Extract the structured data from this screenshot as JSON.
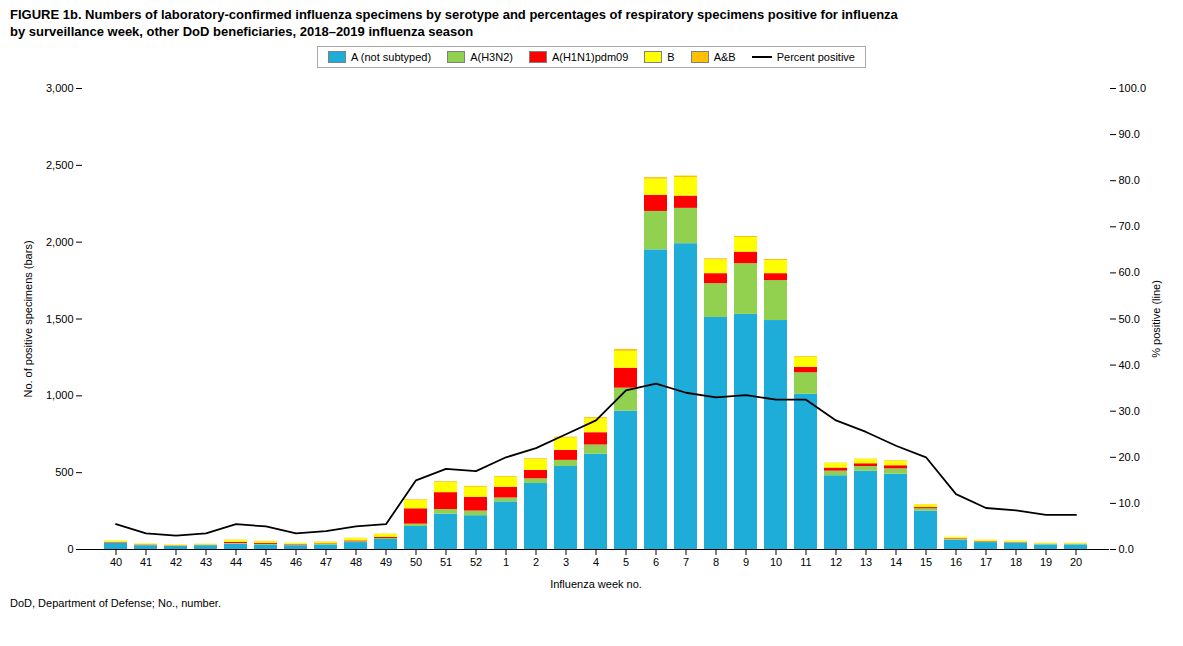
{
  "chart_data": {
    "type": "bar",
    "title": "FIGURE 1b.  Numbers of laboratory-confirmed influenza specimens by serotype and percentages of respiratory specimens positive for influenza",
    "subtitle": "by surveillance week, other DoD beneficiaries, 2018–2019 influenza season",
    "xlabel": "Influenza week no.",
    "ylabel": "No. of positive specimens (bars)",
    "y2label": "% positive (line)",
    "footnote": "DoD, Department of Defense; No., number.",
    "categories": [
      40,
      41,
      42,
      43,
      44,
      45,
      46,
      47,
      48,
      49,
      50,
      51,
      52,
      1,
      2,
      3,
      4,
      5,
      6,
      7,
      8,
      9,
      10,
      11,
      12,
      13,
      14,
      15,
      16,
      17,
      18,
      19,
      20
    ],
    "stacked": true,
    "legend": "top",
    "grid": false,
    "ylim": [
      0,
      3000
    ],
    "yticks": [
      0,
      500,
      {
        "value": 1000,
        "label": "1,000"
      },
      {
        "value": 1500,
        "label": "1,500"
      },
      {
        "value": 2000,
        "label": "2,000"
      },
      {
        "value": 2500,
        "label": "2,500"
      },
      {
        "value": 3000,
        "label": "3,000"
      }
    ],
    "y2lim": [
      0,
      100
    ],
    "y2ticks": [
      {
        "value": 0,
        "label": "0.0"
      },
      {
        "value": 10,
        "label": "10.0"
      },
      {
        "value": 20,
        "label": "20.0"
      },
      {
        "value": 30,
        "label": "30.0"
      },
      {
        "value": 40,
        "label": "40.0"
      },
      {
        "value": 50,
        "label": "50.0"
      },
      {
        "value": 60,
        "label": "60.0"
      },
      {
        "value": 70,
        "label": "70.0"
      },
      {
        "value": 80,
        "label": "80.0"
      },
      {
        "value": 90,
        "label": "90.0"
      },
      {
        "value": 100,
        "label": "100.0"
      }
    ],
    "series": [
      {
        "name": "A (not subtyped)",
        "type": "bar",
        "color": "#1EACD9",
        "values": [
          40,
          25,
          20,
          25,
          35,
          30,
          25,
          30,
          45,
          65,
          150,
          230,
          220,
          310,
          430,
          540,
          620,
          900,
          1950,
          1990,
          1510,
          1530,
          1490,
          1010,
          480,
          510,
          490,
          250,
          60,
          45,
          40,
          30,
          30
        ]
      },
      {
        "name": "A(H3N2)",
        "type": "bar",
        "color": "#92D050",
        "values": [
          3,
          2,
          2,
          2,
          4,
          3,
          2,
          3,
          5,
          6,
          15,
          30,
          30,
          25,
          30,
          40,
          60,
          150,
          250,
          230,
          220,
          330,
          260,
          140,
          30,
          30,
          35,
          15,
          6,
          5,
          4,
          3,
          3
        ]
      },
      {
        "name": "A(H1N1)pdm09",
        "type": "bar",
        "color": "#FF0000",
        "values": [
          4,
          3,
          2,
          2,
          8,
          6,
          4,
          4,
          6,
          8,
          100,
          110,
          90,
          70,
          55,
          65,
          80,
          130,
          105,
          80,
          65,
          75,
          45,
          35,
          20,
          18,
          20,
          8,
          4,
          3,
          3,
          2,
          2
        ]
      },
      {
        "name": "B",
        "type": "bar",
        "color": "#FFFF00",
        "values": [
          8,
          6,
          5,
          5,
          12,
          12,
          8,
          10,
          15,
          20,
          55,
          65,
          65,
          65,
          70,
          80,
          90,
          110,
          105,
          120,
          90,
          95,
          85,
          65,
          30,
          28,
          28,
          18,
          8,
          7,
          7,
          5,
          5
        ]
      },
      {
        "name": "A&B",
        "type": "bar",
        "color": "#FFC000",
        "values": [
          1,
          1,
          1,
          1,
          2,
          2,
          1,
          2,
          2,
          2,
          4,
          6,
          6,
          5,
          5,
          6,
          8,
          12,
          10,
          10,
          7,
          7,
          7,
          5,
          2,
          2,
          4,
          2,
          1,
          1,
          1,
          1,
          1
        ]
      },
      {
        "name": "Percent positive",
        "type": "line",
        "axis": "y2",
        "color": "#000000",
        "values": [
          5.5,
          3.5,
          3.0,
          3.5,
          5.5,
          5.0,
          3.5,
          4.0,
          5.0,
          5.5,
          15.0,
          17.5,
          17.0,
          20.0,
          22.0,
          25.0,
          28.0,
          34.5,
          36.0,
          34.0,
          33.0,
          33.5,
          32.5,
          32.5,
          28.0,
          25.5,
          22.5,
          20.0,
          12.0,
          9.0,
          8.5,
          7.5,
          7.5
        ]
      }
    ]
  }
}
